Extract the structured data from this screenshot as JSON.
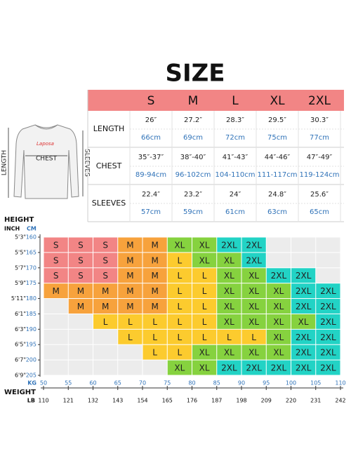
{
  "title": "SIZE",
  "size_table": {
    "headers": [
      "S",
      "M",
      "L",
      "XL",
      "2XL"
    ],
    "rows": [
      {
        "label": "LENGTH",
        "inch": [
          "26″",
          "27.2″",
          "28.3″",
          "29.5″",
          "30.3″"
        ],
        "cm": [
          "66cm",
          "69cm",
          "72cm",
          "75cm",
          "77cm"
        ]
      },
      {
        "label": "CHEST",
        "inch": [
          "35″-37″",
          "38″-40″",
          "41″-43″",
          "44″-46″",
          "47″-49″"
        ],
        "cm": [
          "89-94cm",
          "96-102cm",
          "104-110cm",
          "111-117cm",
          "119-124cm"
        ]
      },
      {
        "label": "SLEEVES",
        "inch": [
          "22.4″",
          "23.2″",
          "24″",
          "24.8″",
          "25.6″"
        ],
        "cm": [
          "57cm",
          "59cm",
          "61cm",
          "63cm",
          "65cm"
        ]
      }
    ]
  },
  "illustration": {
    "brand": "Laposa",
    "length": "LENGTH",
    "chest": "CHEST",
    "sleeves": "SLEEVES"
  },
  "size_grid": {
    "height_label": "HEIGHT",
    "inch_label": "INCH",
    "cm_label": "CM",
    "height_inch": [
      "5'3\"",
      "5'5\"",
      "5'7\"",
      "5'9\"",
      "5'11\"",
      "6'1\"",
      "6'3\"",
      "6'5\"",
      "6'7\"",
      "6'9\""
    ],
    "height_cm": [
      160,
      165,
      170,
      175,
      180,
      185,
      190,
      195,
      200,
      205
    ],
    "weight_label": "WEIGHT",
    "kg_label": "KG",
    "lb_label": "LB",
    "weight_kg": [
      50,
      55,
      60,
      65,
      70,
      75,
      80,
      85,
      90,
      95,
      100,
      105,
      110
    ],
    "weight_lb": [
      110,
      121,
      132,
      143,
      154,
      165,
      176,
      187,
      198,
      209,
      220,
      231,
      242
    ],
    "colors": {
      "S": "#f28585",
      "M": "#f7a23c",
      "L": "#fccb2e",
      "XL": "#86d23f",
      "2XL": "#22d3c5"
    },
    "cells": [
      [
        "S",
        "S",
        "S",
        "M",
        "M",
        "XL",
        "XL",
        "2XL",
        "2XL",
        null,
        null,
        null
      ],
      [
        "S",
        "S",
        "S",
        "M",
        "M",
        "L",
        "XL",
        "XL",
        "2XL",
        null,
        null,
        null
      ],
      [
        "S",
        "S",
        "S",
        "M",
        "M",
        "L",
        "L",
        "XL",
        "XL",
        "2XL",
        "2XL",
        null
      ],
      [
        "M",
        "M",
        "M",
        "M",
        "M",
        "L",
        "L",
        "XL",
        "XL",
        "XL",
        "2XL",
        "2XL"
      ],
      [
        null,
        "M",
        "M",
        "M",
        "M",
        "L",
        "L",
        "XL",
        "XL",
        "XL",
        "2XL",
        "2XL"
      ],
      [
        null,
        null,
        "L",
        "L",
        "L",
        "L",
        "L",
        "XL",
        "XL",
        "XL",
        "XL",
        "2XL"
      ],
      [
        null,
        null,
        null,
        "L",
        "L",
        "L",
        "L",
        "L",
        "L",
        "XL",
        "2XL",
        "2XL"
      ],
      [
        null,
        null,
        null,
        null,
        "L",
        "L",
        "XL",
        "XL",
        "XL",
        "XL",
        "2XL",
        "2XL"
      ],
      [
        null,
        null,
        null,
        null,
        null,
        "XL",
        "XL",
        "2XL",
        "2XL",
        "2XL",
        "2XL",
        "2XL"
      ]
    ]
  }
}
